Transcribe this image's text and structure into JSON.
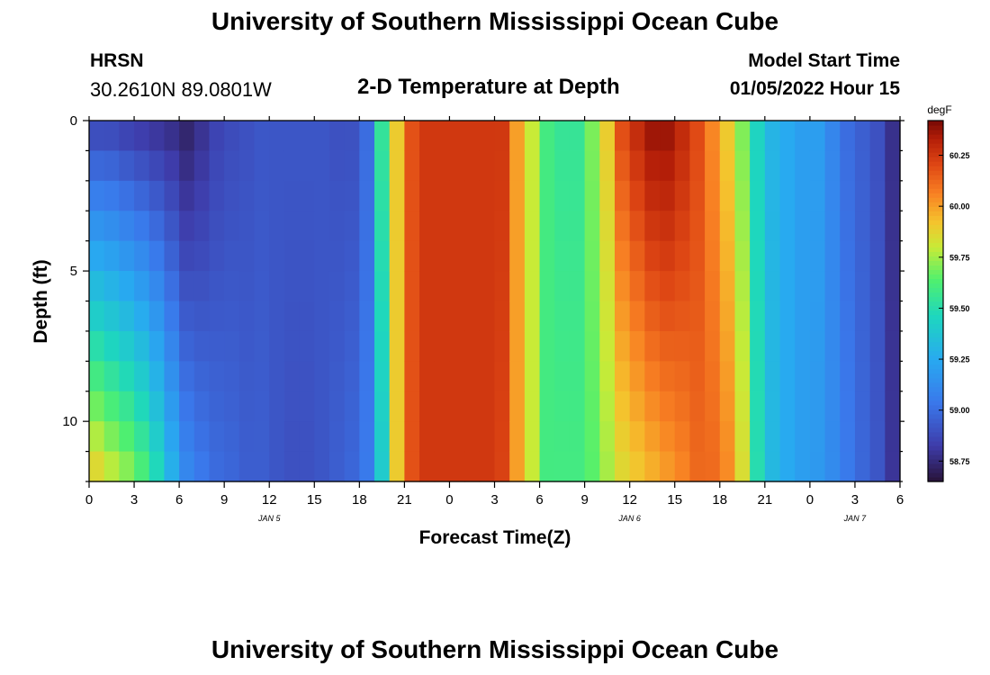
{
  "header": {
    "title": "University of Southern Mississippi Ocean Cube",
    "station": "HRSN",
    "coordinates": "30.2610N  89.0801W",
    "subtitle": "2-D Temperature at Depth",
    "model_start_label": "Model Start Time",
    "model_start_value": "01/05/2022 Hour 15"
  },
  "footer": {
    "title": "University of Southern Mississippi Ocean Cube"
  },
  "chart_data": {
    "type": "heatmap",
    "title": "2-D Temperature at Depth",
    "xlabel": "Forecast Time(Z)",
    "ylabel": "Depth (ft)",
    "x_hours_range": [
      0,
      54
    ],
    "ylim": [
      0,
      12
    ],
    "x_tick_labels": [
      "0",
      "3",
      "6",
      "9",
      "12",
      "15",
      "18",
      "21",
      "0",
      "3",
      "6",
      "9",
      "12",
      "15",
      "18",
      "21",
      "0",
      "3",
      "6"
    ],
    "y_ticks": [
      0,
      5,
      10
    ],
    "date_labels": [
      {
        "text": "JAN 5",
        "hour": 12
      },
      {
        "text": "JAN 6",
        "hour": 36
      },
      {
        "text": "JAN 7",
        "hour": 51
      }
    ],
    "colorbar": {
      "unit": "degF",
      "min": 58.65,
      "max": 60.42,
      "ticks": [
        58.75,
        59.0,
        59.25,
        59.5,
        59.75,
        60.0,
        60.25
      ],
      "tick_labels": [
        "58.75",
        "59.00",
        "59.25",
        "59.50",
        "59.75",
        "60.00",
        "60.25"
      ]
    },
    "depth_levels_ft": [
      0,
      1,
      2,
      3,
      4,
      5,
      6,
      7,
      8,
      9,
      10,
      11,
      12
    ],
    "time_hours": [
      0,
      1,
      2,
      3,
      4,
      5,
      6,
      7,
      8,
      9,
      10,
      11,
      12,
      13,
      14,
      15,
      16,
      17,
      18,
      19,
      20,
      21,
      22,
      23,
      24,
      25,
      26,
      27,
      28,
      29,
      30,
      31,
      32,
      33,
      34,
      35,
      36,
      37,
      38,
      39,
      40,
      41,
      42,
      43,
      44,
      45,
      46,
      47,
      48,
      49,
      50,
      51,
      52,
      53,
      54
    ],
    "surface_temp_degF": [
      58.85,
      58.85,
      58.82,
      58.8,
      58.78,
      58.76,
      58.72,
      58.78,
      58.85,
      58.88,
      58.9,
      58.92,
      58.92,
      58.92,
      58.92,
      58.92,
      58.9,
      58.9,
      59.0,
      59.55,
      59.9,
      60.18,
      60.25,
      60.25,
      60.25,
      60.25,
      60.25,
      60.25,
      60.0,
      59.8,
      59.6,
      59.55,
      59.55,
      59.7,
      59.9,
      60.2,
      60.3,
      60.38,
      60.38,
      60.3,
      60.2,
      60.05,
      59.9,
      59.7,
      59.45,
      59.3,
      59.25,
      59.2,
      59.2,
      59.1,
      59.0,
      58.95,
      58.9,
      58.78,
      58.7
    ],
    "bottom_temp_degF": [
      59.9,
      59.82,
      59.75,
      59.65,
      59.5,
      59.3,
      59.12,
      59.05,
      59.0,
      58.98,
      58.95,
      58.95,
      58.92,
      58.9,
      58.9,
      58.92,
      58.95,
      58.98,
      59.05,
      59.4,
      59.9,
      60.18,
      60.25,
      60.25,
      60.25,
      60.25,
      60.25,
      60.22,
      60.0,
      59.8,
      59.6,
      59.6,
      59.6,
      59.65,
      59.75,
      59.85,
      59.9,
      59.95,
      60.0,
      60.05,
      60.12,
      60.12,
      60.05,
      59.85,
      59.5,
      59.32,
      59.25,
      59.2,
      59.18,
      59.12,
      59.05,
      58.98,
      58.92,
      58.8,
      58.72
    ]
  }
}
